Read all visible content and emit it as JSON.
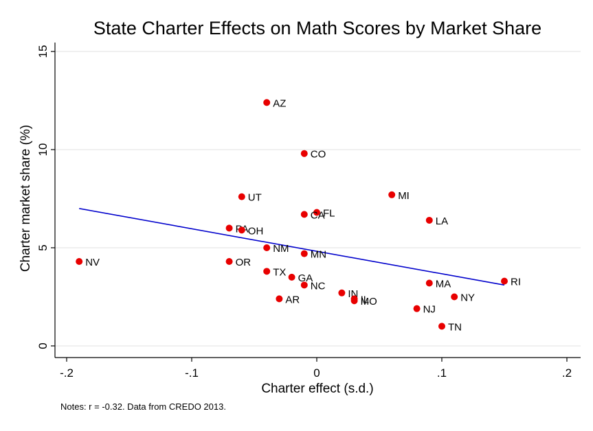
{
  "chart_data": {
    "type": "scatter",
    "title": "State Charter Effects on Math Scores by Market Share",
    "xlabel": "Charter effect (s.d.)",
    "ylabel": "Charter market share (%)",
    "xlim": [
      -0.2,
      0.2
    ],
    "ylim": [
      0,
      15
    ],
    "xticks": [
      {
        "value": -0.2,
        "label": "-.2"
      },
      {
        "value": -0.1,
        "label": "-.1"
      },
      {
        "value": 0,
        "label": "0"
      },
      {
        "value": 0.1,
        "label": ".1"
      },
      {
        "value": 0.2,
        "label": ".2"
      }
    ],
    "yticks": [
      {
        "value": 0,
        "label": "0"
      },
      {
        "value": 5,
        "label": "5"
      },
      {
        "value": 10,
        "label": "10"
      },
      {
        "value": 15,
        "label": "15"
      }
    ],
    "grid": true,
    "points": [
      {
        "label": "AZ",
        "x": -0.04,
        "y": 12.4
      },
      {
        "label": "CO",
        "x": -0.01,
        "y": 9.8
      },
      {
        "label": "UT",
        "x": -0.06,
        "y": 7.6
      },
      {
        "label": "MI",
        "x": 0.06,
        "y": 7.7
      },
      {
        "label": "FL",
        "x": 0.0,
        "y": 6.8
      },
      {
        "label": "CA",
        "x": -0.01,
        "y": 6.7
      },
      {
        "label": "LA",
        "x": 0.09,
        "y": 6.4
      },
      {
        "label": "PA",
        "x": -0.07,
        "y": 6.0
      },
      {
        "label": "OH",
        "x": -0.06,
        "y": 5.9
      },
      {
        "label": "NM",
        "x": -0.04,
        "y": 5.0
      },
      {
        "label": "MN",
        "x": -0.01,
        "y": 4.7
      },
      {
        "label": "NV",
        "x": -0.19,
        "y": 4.3
      },
      {
        "label": "OR",
        "x": -0.07,
        "y": 4.3
      },
      {
        "label": "TX",
        "x": -0.04,
        "y": 3.8
      },
      {
        "label": "GA",
        "x": -0.02,
        "y": 3.5
      },
      {
        "label": "RI",
        "x": 0.15,
        "y": 3.3
      },
      {
        "label": "MA",
        "x": 0.09,
        "y": 3.2
      },
      {
        "label": "NC",
        "x": -0.01,
        "y": 3.1
      },
      {
        "label": "IN",
        "x": 0.02,
        "y": 2.7
      },
      {
        "label": "NY",
        "x": 0.11,
        "y": 2.5
      },
      {
        "label": "AR",
        "x": -0.03,
        "y": 2.4
      },
      {
        "label": "IL",
        "x": 0.03,
        "y": 2.4
      },
      {
        "label": "MO",
        "x": 0.03,
        "y": 2.3
      },
      {
        "label": "NJ",
        "x": 0.08,
        "y": 1.9
      },
      {
        "label": "TN",
        "x": 0.1,
        "y": 1.0
      }
    ],
    "fit_line": {
      "x": [
        -0.19,
        0.15
      ],
      "y": [
        7.0,
        3.1
      ]
    },
    "note": "Notes: r = -0.32. Data from CREDO 2013.",
    "colors": {
      "points": "#e80000",
      "fit_line": "#0000cc",
      "grid": "#e6e6e6"
    }
  }
}
